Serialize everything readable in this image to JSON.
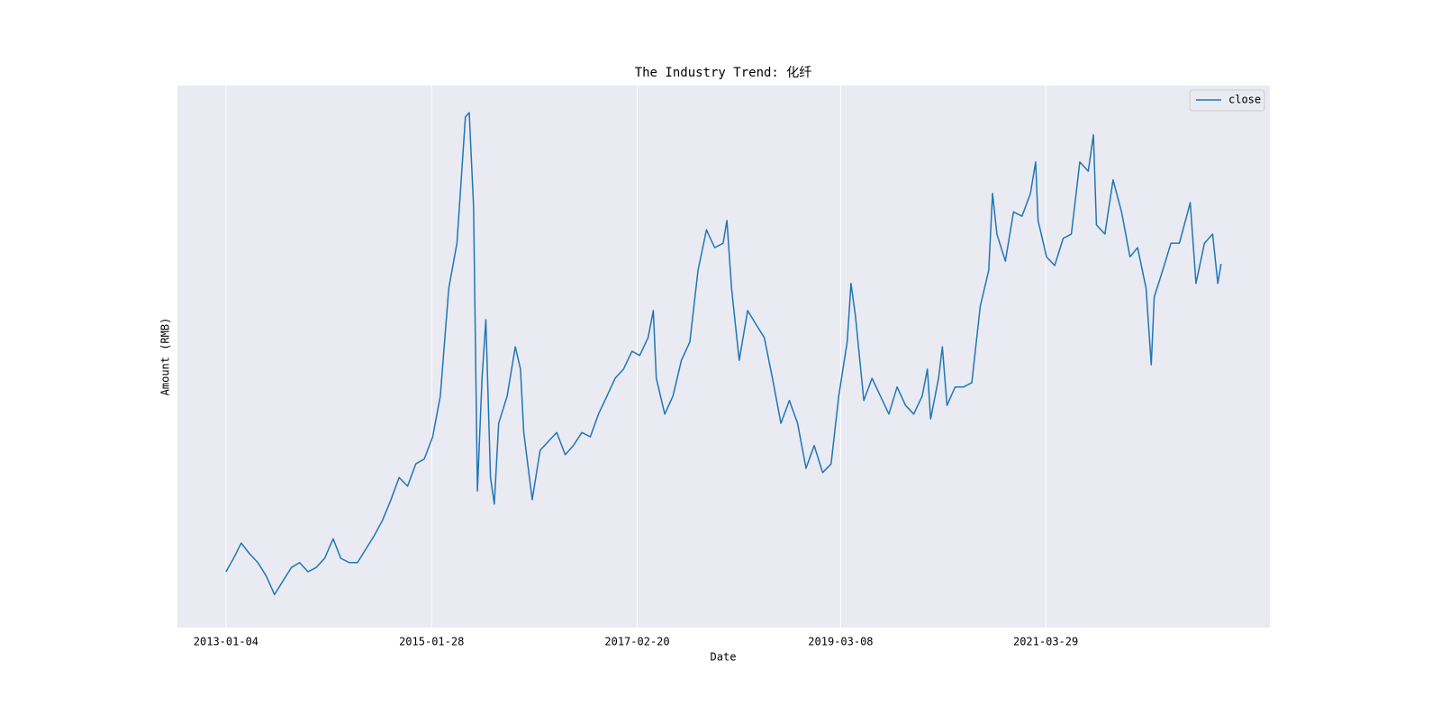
{
  "chart_data": {
    "type": "line",
    "title": "The Industry Trend: 化纤",
    "xlabel": "Date",
    "ylabel": "Amount (RMB)",
    "x": [
      "2013-01-04",
      "2013-02-01",
      "2013-03-01",
      "2013-04-01",
      "2013-05-01",
      "2013-06-01",
      "2013-07-01",
      "2013-08-01",
      "2013-09-01",
      "2013-10-01",
      "2013-11-01",
      "2013-12-01",
      "2014-01-01",
      "2014-02-01",
      "2014-03-01",
      "2014-04-01",
      "2014-05-01",
      "2014-06-01",
      "2014-07-01",
      "2014-08-01",
      "2014-09-01",
      "2014-10-01",
      "2014-11-01",
      "2014-12-01",
      "2015-01-01",
      "2015-02-01",
      "2015-03-01",
      "2015-04-01",
      "2015-05-01",
      "2015-06-01",
      "2015-06-15",
      "2015-07-01",
      "2015-07-15",
      "2015-08-01",
      "2015-08-15",
      "2015-09-01",
      "2015-09-15",
      "2015-10-01",
      "2015-11-01",
      "2015-12-01",
      "2015-12-20",
      "2016-01-01",
      "2016-02-01",
      "2016-03-01",
      "2016-04-01",
      "2016-05-01",
      "2016-06-01",
      "2016-07-01",
      "2016-08-01",
      "2016-09-01",
      "2016-10-01",
      "2016-11-01",
      "2016-12-01",
      "2017-01-01",
      "2017-02-01",
      "2017-03-01",
      "2017-04-01",
      "2017-04-20",
      "2017-05-01",
      "2017-06-01",
      "2017-07-01",
      "2017-08-01",
      "2017-09-01",
      "2017-10-01",
      "2017-11-01",
      "2017-12-01",
      "2018-01-01",
      "2018-01-15",
      "2018-02-01",
      "2018-03-01",
      "2018-04-01",
      "2018-05-01",
      "2018-06-01",
      "2018-07-01",
      "2018-08-01",
      "2018-09-01",
      "2018-10-01",
      "2018-11-01",
      "2018-12-01",
      "2019-01-01",
      "2019-02-01",
      "2019-03-01",
      "2019-04-01",
      "2019-04-15",
      "2019-05-01",
      "2019-06-01",
      "2019-07-01",
      "2019-08-01",
      "2019-09-01",
      "2019-10-01",
      "2019-11-01",
      "2019-12-01",
      "2020-01-01",
      "2020-01-20",
      "2020-02-01",
      "2020-03-01",
      "2020-03-15",
      "2020-04-01",
      "2020-05-01",
      "2020-06-01",
      "2020-07-01",
      "2020-08-01",
      "2020-09-01",
      "2020-09-15",
      "2020-10-01",
      "2020-11-01",
      "2020-12-01",
      "2021-01-01",
      "2021-02-01",
      "2021-02-20",
      "2021-03-01",
      "2021-04-01",
      "2021-05-01",
      "2021-06-01",
      "2021-07-01",
      "2021-08-01",
      "2021-09-01",
      "2021-09-20",
      "2021-10-01",
      "2021-11-01",
      "2021-12-01",
      "2022-01-01",
      "2022-02-01",
      "2022-03-01",
      "2022-04-01",
      "2022-04-20",
      "2022-05-01",
      "2022-06-01",
      "2022-07-01",
      "2022-08-01",
      "2022-09-01",
      "2022-09-10",
      "2022-10-01",
      "2022-11-01",
      "2022-12-01",
      "2022-12-20",
      "2023-01-01"
    ],
    "series": [
      {
        "name": "close",
        "color": "#1f77b4",
        "values": [
          10.3,
          12.8,
          15.6,
          13.6,
          12.0,
          9.5,
          6.1,
          8.6,
          11.1,
          12.0,
          10.3,
          11.1,
          12.8,
          16.4,
          12.8,
          12.0,
          12.0,
          14.5,
          16.9,
          19.8,
          23.6,
          27.7,
          26.1,
          30.2,
          31.1,
          35.2,
          42.7,
          62.6,
          70.9,
          94.2,
          95.0,
          77.6,
          25.2,
          46.0,
          56.8,
          27.7,
          22.8,
          37.7,
          42.7,
          51.8,
          47.7,
          36.0,
          23.6,
          32.7,
          34.4,
          36.0,
          31.9,
          33.6,
          36.0,
          35.2,
          39.4,
          42.7,
          46.0,
          47.7,
          51.0,
          50.2,
          53.5,
          58.5,
          46.0,
          39.4,
          42.7,
          49.3,
          52.7,
          65.9,
          73.4,
          70.1,
          70.9,
          75.1,
          62.6,
          49.3,
          58.5,
          56.0,
          53.5,
          46.0,
          37.7,
          41.9,
          37.7,
          29.4,
          33.6,
          28.6,
          30.2,
          42.7,
          52.7,
          63.5,
          57.6,
          41.9,
          46.0,
          42.7,
          39.4,
          44.4,
          41.0,
          39.4,
          42.7,
          47.7,
          38.5,
          46.0,
          51.8,
          41.0,
          44.4,
          44.4,
          45.2,
          59.3,
          65.9,
          80.1,
          72.6,
          67.6,
          76.7,
          75.9,
          80.1,
          85.9,
          75.1,
          68.4,
          66.8,
          71.8,
          72.6,
          85.9,
          84.2,
          90.9,
          74.3,
          72.6,
          82.6,
          76.7,
          68.4,
          70.1,
          62.6,
          48.5,
          61.0,
          65.9,
          70.9,
          70.9,
          76.7,
          78.4,
          63.5,
          70.9,
          72.6,
          63.5,
          67.1
        ]
      }
    ],
    "xlim": [
      "2012-07-10",
      "2023-06-29"
    ],
    "xticks": [
      "2013-01-04",
      "2015-01-28",
      "2017-02-20",
      "2019-03-08",
      "2021-03-29"
    ],
    "ylim": [
      0,
      100
    ],
    "grid": true,
    "legend": "upper right"
  }
}
